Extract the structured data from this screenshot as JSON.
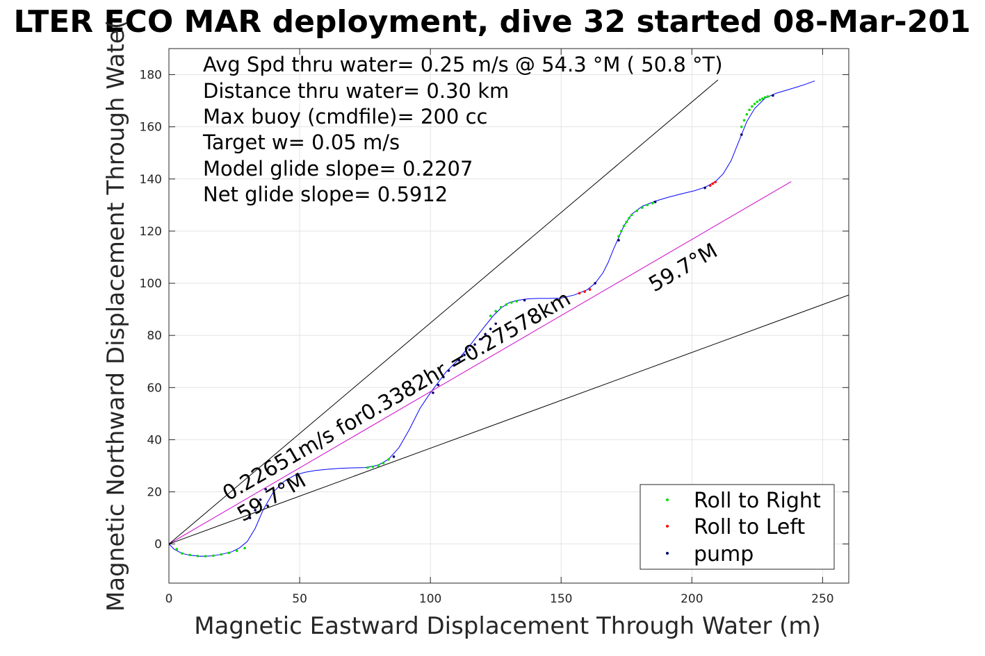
{
  "chart_data": {
    "type": "line",
    "title": "LTER ECO MAR deployment, dive 32 started 08-Mar-201",
    "xlabel": "Magnetic Eastward Displacement Through Water (m)",
    "ylabel": "Magnetic Northward Displacement Through Wate(",
    "xlim": [
      0,
      260
    ],
    "ylim": [
      -15,
      190
    ],
    "xticks": [
      0,
      50,
      100,
      150,
      200,
      250
    ],
    "yticks": [
      0,
      20,
      40,
      60,
      80,
      100,
      120,
      140,
      160,
      180
    ],
    "grid": true,
    "legend_position": "bottom-right",
    "stats": [
      "Avg Spd thru water=  0.25 m/s @  54.3 °M ( 50.8 °T)",
      "Distance thru water=  0.30 km",
      "Max buoy (cmdfile)= 200 cc",
      "Target w= 0.05 m/s",
      "Model glide slope= 0.2207",
      "Net glide slope= 0.5912"
    ],
    "annotations": {
      "heading_label": "59.7°M",
      "heading_label_lower": "59.7°M",
      "track_label": "0.22651m/s for0.3382hr =0.27578km"
    },
    "series": [
      {
        "name": "Roll to Right",
        "color": "#00dd00",
        "marker": "dot",
        "x": [
          3,
          5,
          8,
          11,
          14,
          17,
          20,
          23,
          26,
          29,
          76,
          78,
          80,
          82,
          84,
          123,
          125,
          127,
          129,
          131,
          133,
          172,
          173,
          174,
          175,
          176,
          177,
          179,
          181,
          183,
          185,
          219,
          220,
          221,
          222,
          223,
          224,
          225,
          226,
          227,
          228,
          229
        ],
        "y": [
          -2,
          -3.6,
          -4.2,
          -4.6,
          -4.7,
          -4.5,
          -4,
          -3.4,
          -2.6,
          -1.6,
          29.3,
          29.6,
          30.1,
          31,
          32.4,
          87.5,
          89.3,
          90.8,
          91.8,
          92.6,
          93.1,
          118,
          120,
          122,
          123.5,
          125,
          126.2,
          127.8,
          129,
          130,
          130.7,
          160,
          162.5,
          164.8,
          166.5,
          167.8,
          168.8,
          169.6,
          170.3,
          170.8,
          171.3,
          171.6
        ]
      },
      {
        "name": "Roll to Left",
        "color": "#ff0000",
        "marker": "dot",
        "x": [
          157,
          159,
          161,
          207,
          208,
          209
        ],
        "y": [
          96.2,
          96.8,
          97.6,
          137.5,
          138.2,
          138.8
        ]
      },
      {
        "name": "pump",
        "color": "#000066",
        "marker": "dot",
        "x": [
          0,
          31,
          33,
          35,
          37,
          86,
          101,
          103,
          105,
          107,
          109,
          111,
          113,
          115,
          117,
          119,
          121,
          123,
          125,
          136,
          163,
          172,
          186,
          205,
          219,
          231
        ],
        "y": [
          0,
          10,
          13,
          17,
          21,
          33.5,
          58,
          61,
          64,
          66.5,
          68.5,
          70.5,
          72.5,
          74.5,
          76.5,
          78.5,
          80.5,
          82.5,
          84.5,
          93.5,
          100,
          116.5,
          131.2,
          136.6,
          157,
          172
        ]
      },
      {
        "name": "",
        "color": "#0000ff",
        "marker": "line",
        "x": [
          0,
          2,
          5,
          8,
          12,
          16,
          20,
          24,
          27,
          30,
          33,
          36,
          40,
          44,
          48,
          52,
          56,
          60,
          65,
          70,
          75,
          80,
          84,
          88,
          92,
          96,
          100,
          103,
          106,
          110,
          115,
          120,
          124,
          127,
          130,
          133,
          137,
          141,
          145,
          150,
          155,
          160,
          163,
          166,
          168,
          170,
          172,
          174,
          177,
          181,
          186,
          191,
          196,
          201,
          205,
          209,
          212,
          215,
          217,
          219,
          221,
          224,
          228,
          232,
          236,
          240,
          244,
          247
        ],
        "y": [
          0,
          -2,
          -3.6,
          -4.3,
          -4.7,
          -4.6,
          -4,
          -3,
          -1.5,
          1,
          6,
          13,
          20,
          24,
          26.3,
          27.5,
          28.2,
          28.6,
          29,
          29.2,
          29.3,
          30.2,
          32.5,
          37,
          44,
          52,
          58,
          62,
          66,
          70,
          76,
          82.5,
          87.5,
          90.5,
          92.5,
          93.4,
          94,
          94.2,
          94.2,
          94.3,
          95.5,
          97.5,
          100,
          104,
          108,
          113,
          117.5,
          122,
          126.5,
          129.5,
          131.5,
          133,
          134.3,
          135.5,
          136.8,
          139,
          142,
          147,
          152,
          157,
          162,
          167,
          171,
          172.8,
          174,
          175.2,
          176.5,
          177.6
        ]
      },
      {
        "name": "",
        "color": "#cc00cc",
        "marker": "line",
        "x": [
          0,
          238
        ],
        "y": [
          0,
          139
        ]
      },
      {
        "name": "",
        "color": "#000000",
        "marker": "line",
        "x": [
          0,
          210
        ],
        "y": [
          0,
          178
        ]
      },
      {
        "name": "",
        "color": "#000000",
        "marker": "line",
        "x": [
          0,
          260
        ],
        "y": [
          0,
          95.5
        ]
      }
    ]
  }
}
